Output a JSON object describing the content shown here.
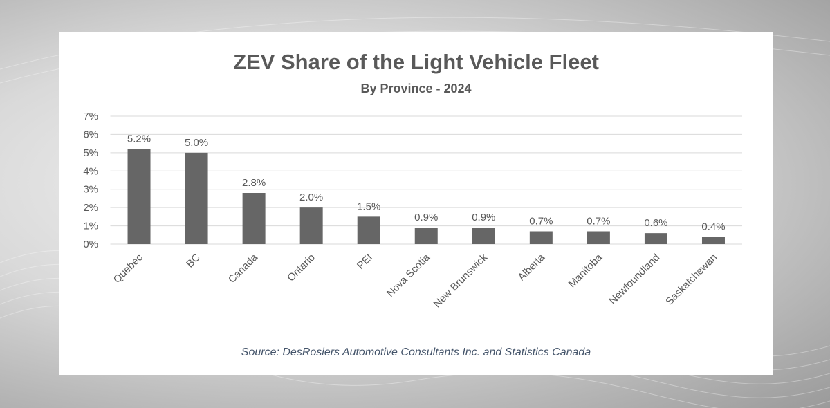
{
  "colors": {
    "bar": "#666666",
    "gridline": "#d9d9d9",
    "text": "#595959",
    "source": "#44546a"
  },
  "chart_data": {
    "type": "bar",
    "title": "ZEV Share of the Light Vehicle Fleet",
    "subtitle": "By Province - 2024",
    "xlabel": "",
    "ylabel": "",
    "ylim": [
      0,
      7
    ],
    "yticks": [
      "0%",
      "1%",
      "2%",
      "3%",
      "4%",
      "5%",
      "6%",
      "7%"
    ],
    "grid": true,
    "categories": [
      "Quebec",
      "BC",
      "Canada",
      "Ontario",
      "PEI",
      "Nova Scotia",
      "New Brunswick",
      "Alberta",
      "Manitoba",
      "Newfoundland",
      "Saskatchewan"
    ],
    "values": [
      5.2,
      5.0,
      2.8,
      2.0,
      1.5,
      0.9,
      0.9,
      0.7,
      0.7,
      0.6,
      0.4
    ],
    "data_labels": [
      "5.2%",
      "5.0%",
      "2.8%",
      "2.0%",
      "1.5%",
      "0.9%",
      "0.9%",
      "0.7%",
      "0.7%",
      "0.6%",
      "0.4%"
    ],
    "source": "Source: DesRosiers Automotive Consultants Inc. and Statistics Canada"
  }
}
